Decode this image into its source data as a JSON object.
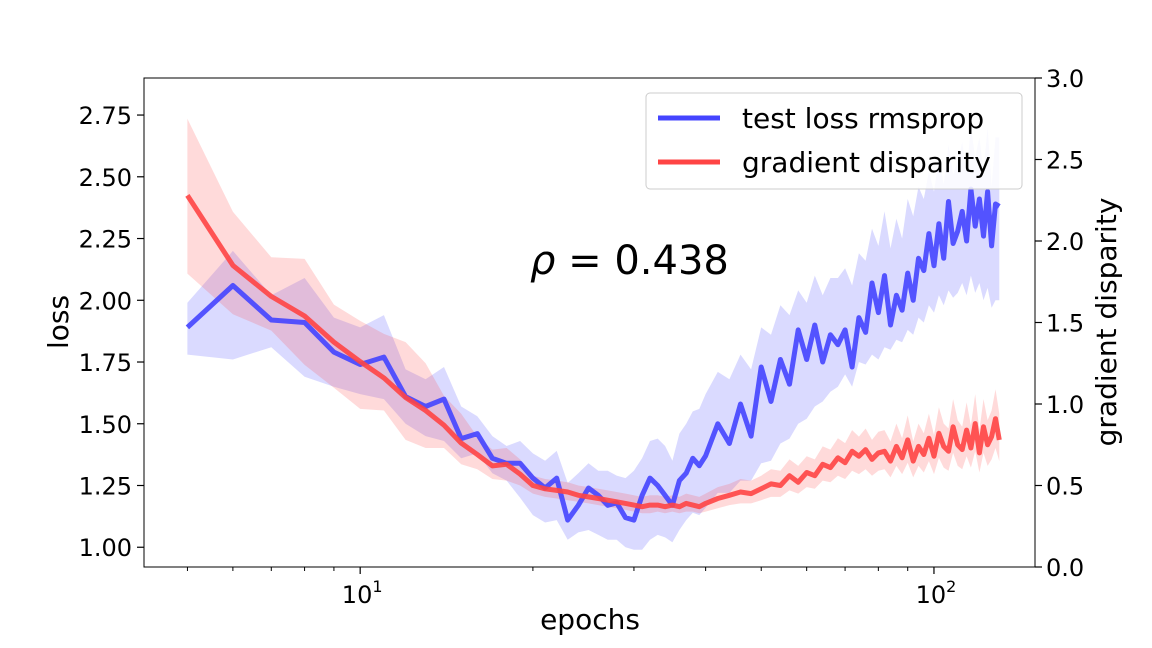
{
  "chart_data": {
    "type": "line",
    "xlabel": "epochs",
    "ylabel": "loss",
    "y2label": "gradient disparity",
    "xscale": "log",
    "xlim": [
      4.2,
      150
    ],
    "ylim": [
      0.92,
      2.9
    ],
    "y2lim": [
      0.0,
      3.0
    ],
    "x_ticks": [
      10,
      100
    ],
    "x_tick_labels": [
      {
        "base": "10",
        "exp": "1"
      },
      {
        "base": "10",
        "exp": "2"
      }
    ],
    "y_ticks": [
      "1.00",
      "1.25",
      "1.50",
      "1.75",
      "2.00",
      "2.25",
      "2.50",
      "2.75"
    ],
    "y2_ticks": [
      "0.0",
      "0.5",
      "1.0",
      "1.5",
      "2.0",
      "2.5",
      "3.0"
    ],
    "annotation": {
      "symbol": "ρ",
      "text": " = 0.438"
    },
    "legend_position": "top-right",
    "series": [
      {
        "name": "test loss rmsprop",
        "axis": "left",
        "color": "#4444ff",
        "x": [
          5,
          6,
          7,
          8,
          9,
          10,
          11,
          12,
          13,
          14,
          15,
          16,
          17,
          18,
          19,
          20,
          21,
          22,
          23,
          24,
          25,
          26,
          27,
          28,
          29,
          30,
          31,
          32,
          33,
          34,
          35,
          36,
          37,
          38,
          39,
          40,
          42,
          44,
          46,
          48,
          50,
          52,
          54,
          56,
          58,
          60,
          62,
          64,
          66,
          68,
          70,
          72,
          74,
          76,
          78,
          80,
          82,
          84,
          86,
          88,
          90,
          92,
          94,
          96,
          98,
          100,
          102,
          104,
          106,
          108,
          110,
          112,
          114,
          116,
          118,
          120,
          122,
          124,
          126,
          128,
          130
        ],
        "y": [
          1.89,
          2.06,
          1.92,
          1.91,
          1.79,
          1.74,
          1.77,
          1.61,
          1.57,
          1.6,
          1.44,
          1.46,
          1.36,
          1.34,
          1.34,
          1.28,
          1.24,
          1.28,
          1.11,
          1.17,
          1.24,
          1.21,
          1.17,
          1.18,
          1.12,
          1.11,
          1.21,
          1.28,
          1.25,
          1.21,
          1.17,
          1.27,
          1.3,
          1.36,
          1.33,
          1.37,
          1.5,
          1.42,
          1.58,
          1.45,
          1.73,
          1.59,
          1.76,
          1.66,
          1.88,
          1.76,
          1.9,
          1.75,
          1.86,
          1.82,
          1.88,
          1.73,
          1.93,
          1.87,
          2.07,
          1.95,
          2.1,
          1.9,
          2.02,
          1.96,
          2.11,
          2.0,
          2.17,
          2.12,
          2.27,
          2.14,
          2.31,
          2.17,
          2.4,
          2.23,
          2.28,
          2.36,
          2.24,
          2.45,
          2.3,
          2.41,
          2.26,
          2.44,
          2.22,
          2.39,
          2.38
        ],
        "band_lower": [
          1.78,
          1.76,
          1.81,
          1.69,
          1.65,
          1.62,
          1.6,
          1.5,
          1.45,
          1.43,
          1.36,
          1.38,
          1.3,
          1.27,
          1.2,
          1.13,
          1.1,
          1.11,
          1.03,
          1.06,
          1.07,
          1.05,
          1.03,
          1.03,
          1.0,
          0.99,
          0.99,
          1.03,
          1.05,
          1.04,
          1.02,
          1.07,
          1.11,
          1.14,
          1.13,
          1.16,
          1.22,
          1.22,
          1.27,
          1.27,
          1.34,
          1.35,
          1.42,
          1.44,
          1.5,
          1.52,
          1.57,
          1.59,
          1.63,
          1.65,
          1.7,
          1.65,
          1.75,
          1.74,
          1.78,
          1.76,
          1.81,
          1.8,
          1.84,
          1.83,
          1.88,
          1.86,
          1.93,
          1.91,
          1.98,
          1.95,
          2.02,
          1.98,
          2.04,
          2.01,
          2.03,
          2.07,
          2.02,
          2.1,
          2.03,
          2.07,
          2.0,
          2.05,
          1.97,
          2.0,
          2.0
        ],
        "band_upper": [
          1.99,
          2.2,
          2.02,
          2.09,
          1.93,
          1.89,
          1.94,
          1.72,
          1.68,
          1.73,
          1.57,
          1.53,
          1.45,
          1.41,
          1.43,
          1.38,
          1.35,
          1.39,
          1.26,
          1.3,
          1.34,
          1.31,
          1.31,
          1.29,
          1.28,
          1.31,
          1.36,
          1.43,
          1.44,
          1.41,
          1.35,
          1.46,
          1.5,
          1.55,
          1.56,
          1.62,
          1.71,
          1.68,
          1.78,
          1.72,
          1.89,
          1.86,
          1.98,
          1.94,
          2.04,
          1.99,
          2.1,
          2.02,
          2.09,
          2.09,
          2.13,
          2.06,
          2.19,
          2.16,
          2.29,
          2.22,
          2.36,
          2.21,
          2.33,
          2.25,
          2.41,
          2.34,
          2.46,
          2.41,
          2.52,
          2.44,
          2.58,
          2.47,
          2.63,
          2.51,
          2.56,
          2.64,
          2.52,
          2.7,
          2.58,
          2.66,
          2.52,
          2.7,
          2.46,
          2.66,
          2.66
        ]
      },
      {
        "name": "gradient disparity",
        "axis": "right",
        "color": "#ff4444",
        "x": [
          5,
          6,
          7,
          8,
          9,
          10,
          11,
          12,
          13,
          14,
          15,
          16,
          17,
          18,
          19,
          20,
          21,
          22,
          23,
          24,
          25,
          26,
          27,
          28,
          29,
          30,
          31,
          32,
          33,
          34,
          35,
          36,
          37,
          38,
          39,
          40,
          42,
          44,
          46,
          48,
          50,
          52,
          54,
          56,
          58,
          60,
          62,
          64,
          66,
          68,
          70,
          72,
          74,
          76,
          78,
          80,
          82,
          84,
          86,
          88,
          90,
          92,
          94,
          96,
          98,
          100,
          102,
          104,
          106,
          108,
          110,
          112,
          114,
          116,
          118,
          120,
          122,
          124,
          126,
          128,
          130
        ],
        "y": [
          2.28,
          1.85,
          1.66,
          1.54,
          1.38,
          1.26,
          1.16,
          1.04,
          0.96,
          0.87,
          0.76,
          0.69,
          0.62,
          0.63,
          0.57,
          0.5,
          0.48,
          0.47,
          0.46,
          0.44,
          0.43,
          0.42,
          0.41,
          0.4,
          0.39,
          0.38,
          0.37,
          0.38,
          0.38,
          0.37,
          0.38,
          0.37,
          0.39,
          0.38,
          0.37,
          0.39,
          0.42,
          0.44,
          0.46,
          0.45,
          0.48,
          0.51,
          0.5,
          0.56,
          0.52,
          0.58,
          0.56,
          0.63,
          0.61,
          0.67,
          0.64,
          0.71,
          0.68,
          0.72,
          0.66,
          0.7,
          0.71,
          0.65,
          0.74,
          0.67,
          0.78,
          0.65,
          0.74,
          0.69,
          0.79,
          0.68,
          0.82,
          0.74,
          0.71,
          0.86,
          0.75,
          0.72,
          0.84,
          0.73,
          0.88,
          0.7,
          0.86,
          0.75,
          0.8,
          0.91,
          0.78
        ],
        "band_lower": [
          1.8,
          1.55,
          1.45,
          1.24,
          1.1,
          0.97,
          0.96,
          0.78,
          0.73,
          0.73,
          0.63,
          0.6,
          0.54,
          0.53,
          0.5,
          0.45,
          0.43,
          0.42,
          0.41,
          0.4,
          0.39,
          0.38,
          0.37,
          0.36,
          0.35,
          0.34,
          0.33,
          0.33,
          0.34,
          0.33,
          0.34,
          0.33,
          0.34,
          0.34,
          0.33,
          0.34,
          0.36,
          0.38,
          0.39,
          0.39,
          0.41,
          0.43,
          0.43,
          0.47,
          0.45,
          0.49,
          0.48,
          0.53,
          0.52,
          0.56,
          0.54,
          0.59,
          0.57,
          0.6,
          0.56,
          0.59,
          0.6,
          0.55,
          0.62,
          0.57,
          0.64,
          0.55,
          0.62,
          0.58,
          0.65,
          0.57,
          0.67,
          0.61,
          0.59,
          0.7,
          0.62,
          0.6,
          0.68,
          0.61,
          0.71,
          0.58,
          0.7,
          0.62,
          0.66,
          0.73,
          0.65
        ],
        "band_upper": [
          2.75,
          2.18,
          1.9,
          1.89,
          1.61,
          1.51,
          1.43,
          1.38,
          1.25,
          1.05,
          0.94,
          0.8,
          0.72,
          0.73,
          0.66,
          0.56,
          0.54,
          0.53,
          0.52,
          0.5,
          0.49,
          0.48,
          0.47,
          0.46,
          0.45,
          0.44,
          0.43,
          0.44,
          0.44,
          0.43,
          0.44,
          0.43,
          0.45,
          0.44,
          0.43,
          0.45,
          0.49,
          0.51,
          0.54,
          0.53,
          0.56,
          0.6,
          0.59,
          0.66,
          0.62,
          0.68,
          0.66,
          0.74,
          0.72,
          0.79,
          0.76,
          0.84,
          0.8,
          0.85,
          0.78,
          0.83,
          0.84,
          0.77,
          0.88,
          0.79,
          0.93,
          0.77,
          0.88,
          0.82,
          0.94,
          0.81,
          0.98,
          0.88,
          0.85,
          1.03,
          0.9,
          0.86,
          1.01,
          0.87,
          1.06,
          0.84,
          1.03,
          0.9,
          0.96,
          1.09,
          0.94
        ]
      }
    ]
  }
}
